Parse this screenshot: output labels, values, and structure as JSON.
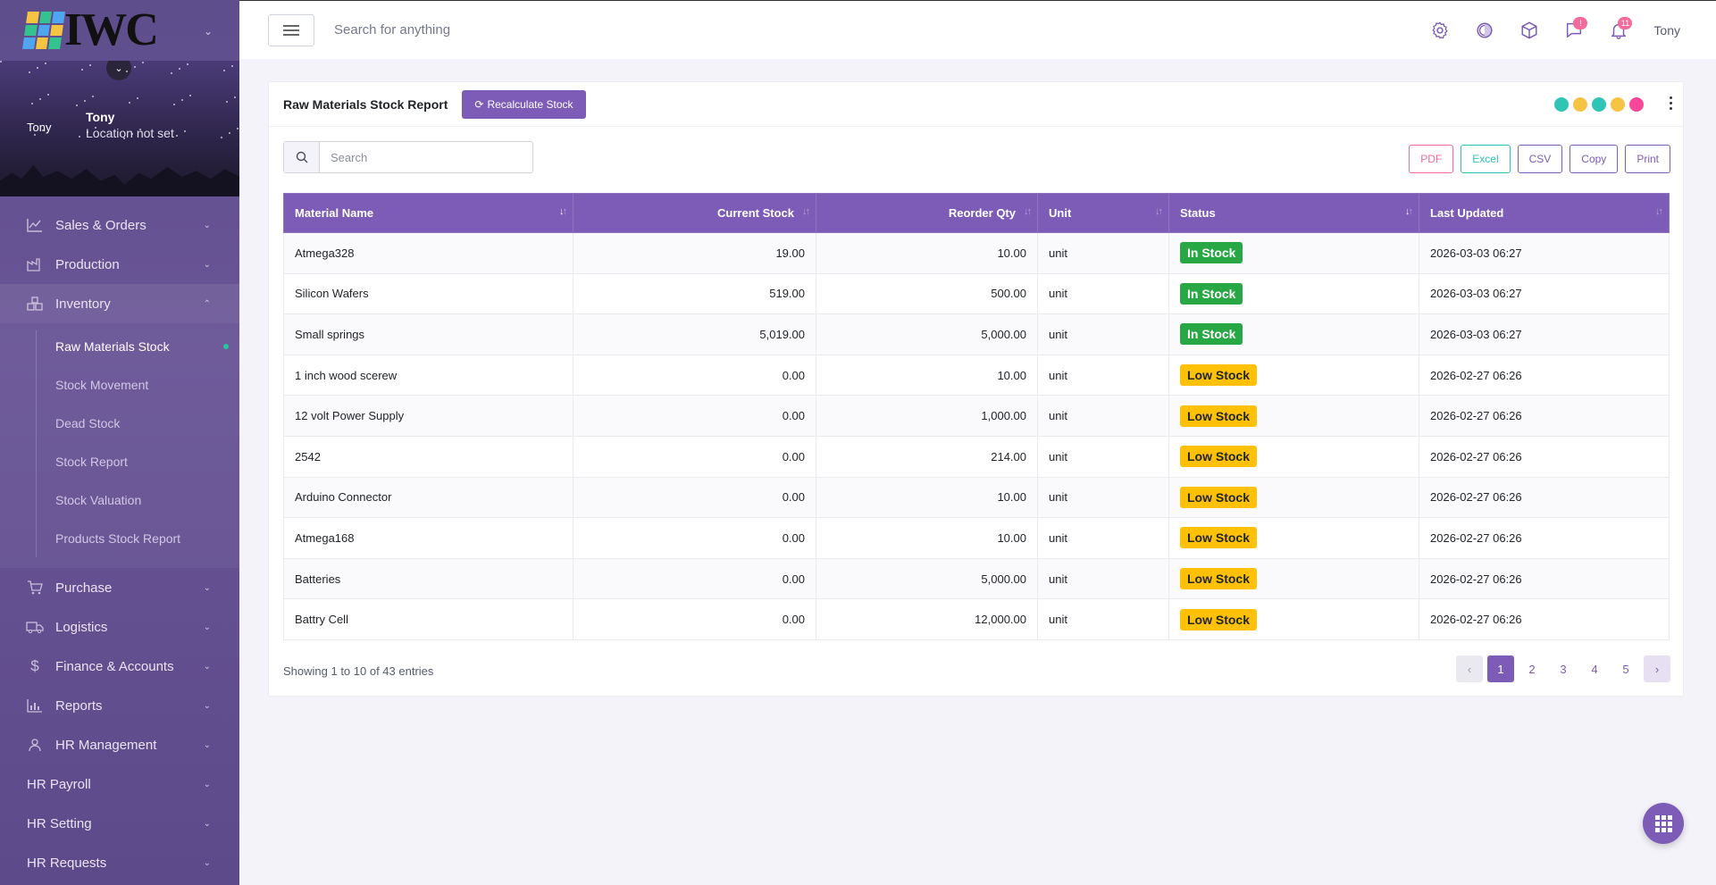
{
  "brand": {
    "logo_text": "IWC",
    "logo_colors": [
      "#f6c343",
      "#34c38f",
      "#50a5f1",
      "#34c38f",
      "#50a5f1",
      "#f6c343",
      "#50a5f1",
      "#f6c343",
      "#34c38f"
    ]
  },
  "profile": {
    "avatar_text": "Tony",
    "name": "Tony",
    "location": "Location not set"
  },
  "sidebar": {
    "items": [
      {
        "label": "Sales & Orders",
        "icon": "chart-line-icon"
      },
      {
        "label": "Production",
        "icon": "factory-icon"
      },
      {
        "label": "Inventory",
        "icon": "boxes-icon",
        "expanded": true
      },
      {
        "label": "Purchase",
        "icon": "cart-icon"
      },
      {
        "label": "Logistics",
        "icon": "truck-icon"
      },
      {
        "label": "Finance & Accounts",
        "icon": "dollar-icon"
      },
      {
        "label": "Reports",
        "icon": "bar-chart-icon"
      },
      {
        "label": "HR Management",
        "icon": "users-icon"
      },
      {
        "label": "HR Payroll"
      },
      {
        "label": "HR Setting"
      },
      {
        "label": "HR Requests"
      }
    ],
    "inventory_sub": [
      {
        "label": "Raw Materials Stock",
        "active": true
      },
      {
        "label": "Stock Movement"
      },
      {
        "label": "Dead Stock"
      },
      {
        "label": "Stock Report"
      },
      {
        "label": "Stock Valuation"
      },
      {
        "label": "Products Stock Report"
      }
    ]
  },
  "header": {
    "search_placeholder": "Search for anything",
    "chat_badge": "!",
    "notif_badge": "11",
    "user": "Tony"
  },
  "card": {
    "title": "Raw Materials Stock Report",
    "recalc_label": "Recalculate Stock",
    "theme_colors": [
      "#2ec4b6",
      "#f6c343",
      "#2ec4b6",
      "#f6c343",
      "#f7479a"
    ],
    "search_placeholder": "Search",
    "export": {
      "pdf": "PDF",
      "excel": "Excel",
      "csv": "CSV",
      "copy": "Copy",
      "print": "Print"
    }
  },
  "table": {
    "headers": {
      "material": "Material Name",
      "current": "Current Stock",
      "reorder": "Reorder Qty",
      "unit": "Unit",
      "status": "Status",
      "updated": "Last Updated"
    },
    "rows": [
      {
        "name": "Atmega328",
        "current": "19.00",
        "reorder": "10.00",
        "unit": "unit",
        "status": "In Stock",
        "kind": "instock",
        "updated": "2026-03-03 06:27"
      },
      {
        "name": "Silicon Wafers",
        "current": "519.00",
        "reorder": "500.00",
        "unit": "unit",
        "status": "In Stock",
        "kind": "instock",
        "updated": "2026-03-03 06:27"
      },
      {
        "name": "Small springs",
        "current": "5,019.00",
        "reorder": "5,000.00",
        "unit": "unit",
        "status": "In Stock",
        "kind": "instock",
        "updated": "2026-03-03 06:27"
      },
      {
        "name": "1 inch wood scerew",
        "current": "0.00",
        "reorder": "10.00",
        "unit": "unit",
        "status": "Low Stock",
        "kind": "low",
        "updated": "2026-02-27 06:26"
      },
      {
        "name": "12 volt Power Supply",
        "current": "0.00",
        "reorder": "1,000.00",
        "unit": "unit",
        "status": "Low Stock",
        "kind": "low",
        "updated": "2026-02-27 06:26"
      },
      {
        "name": "2542",
        "current": "0.00",
        "reorder": "214.00",
        "unit": "unit",
        "status": "Low Stock",
        "kind": "low",
        "updated": "2026-02-27 06:26"
      },
      {
        "name": "Arduino Connector",
        "current": "0.00",
        "reorder": "10.00",
        "unit": "unit",
        "status": "Low Stock",
        "kind": "low",
        "updated": "2026-02-27 06:26"
      },
      {
        "name": "Atmega168",
        "current": "0.00",
        "reorder": "10.00",
        "unit": "unit",
        "status": "Low Stock",
        "kind": "low",
        "updated": "2026-02-27 06:26"
      },
      {
        "name": "Batteries",
        "current": "0.00",
        "reorder": "5,000.00",
        "unit": "unit",
        "status": "Low Stock",
        "kind": "low",
        "updated": "2026-02-27 06:26"
      },
      {
        "name": "Battry Cell",
        "current": "0.00",
        "reorder": "12,000.00",
        "unit": "unit",
        "status": "Low Stock",
        "kind": "low",
        "updated": "2026-02-27 06:26"
      }
    ]
  },
  "footer": {
    "info": "Showing 1 to 10 of 43 entries",
    "pages": [
      "1",
      "2",
      "3",
      "4",
      "5"
    ],
    "active_page": "1"
  }
}
